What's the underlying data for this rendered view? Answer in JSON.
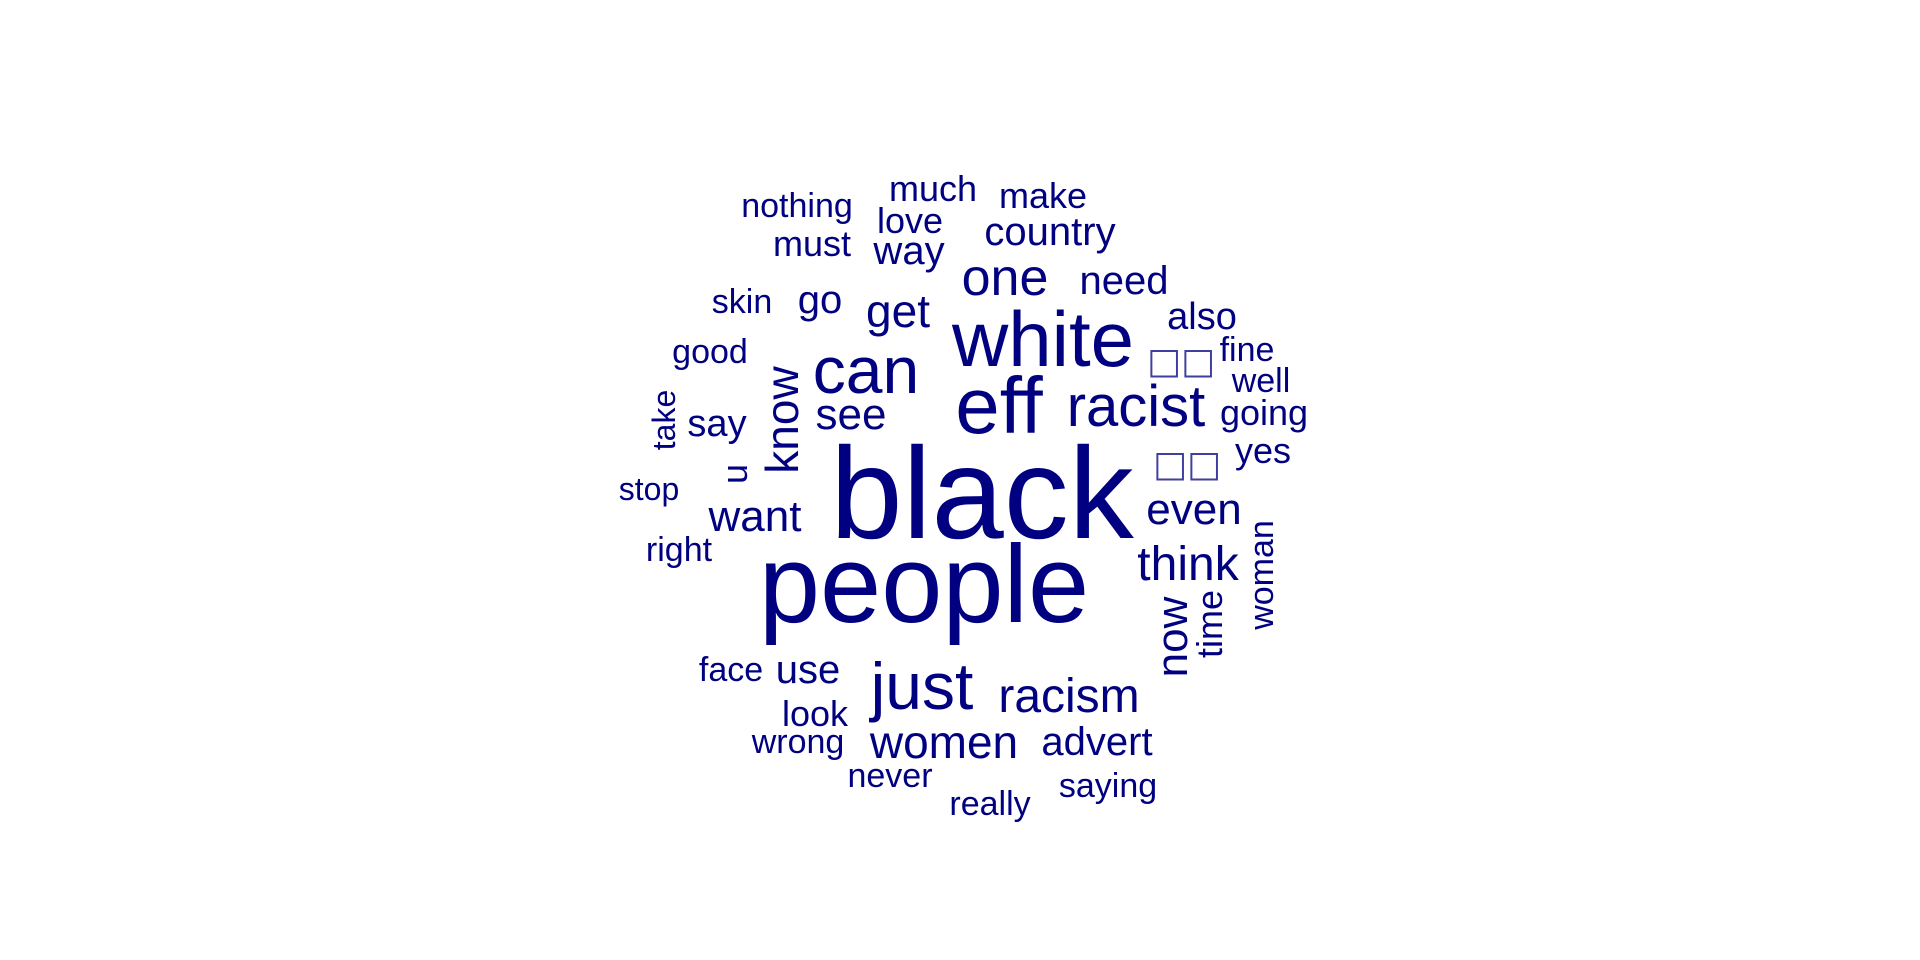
{
  "color": "#000080",
  "words": [
    {
      "text": "black"
    },
    {
      "text": "people"
    },
    {
      "text": "white"
    },
    {
      "text": "eff"
    },
    {
      "text": "can"
    },
    {
      "text": "racist"
    },
    {
      "text": "just"
    },
    {
      "text": "one"
    },
    {
      "text": "racism"
    },
    {
      "text": "think"
    },
    {
      "text": "women"
    },
    {
      "text": "even"
    },
    {
      "text": "know"
    },
    {
      "text": "get"
    },
    {
      "text": "want"
    },
    {
      "text": "see"
    },
    {
      "text": "now"
    },
    {
      "text": "country"
    },
    {
      "text": "advert"
    },
    {
      "text": "need"
    },
    {
      "text": "use"
    },
    {
      "text": "way"
    },
    {
      "text": "also"
    },
    {
      "text": "go"
    },
    {
      "text": "woman"
    },
    {
      "text": "much"
    },
    {
      "text": "make"
    },
    {
      "text": "love"
    },
    {
      "text": "say"
    },
    {
      "text": "look"
    },
    {
      "text": "must"
    },
    {
      "text": "time"
    },
    {
      "text": "going"
    },
    {
      "text": "nothing"
    },
    {
      "text": "skin"
    },
    {
      "text": "good"
    },
    {
      "text": "right"
    },
    {
      "text": "face"
    },
    {
      "text": "wrong"
    },
    {
      "text": "never"
    },
    {
      "text": "really"
    },
    {
      "text": "saying"
    },
    {
      "text": "yes"
    },
    {
      "text": "well"
    },
    {
      "text": "fine"
    },
    {
      "text": "stop"
    },
    {
      "text": "take"
    },
    {
      "text": "u"
    },
    {
      "text": "□□"
    },
    {
      "text": "□□"
    }
  ]
}
